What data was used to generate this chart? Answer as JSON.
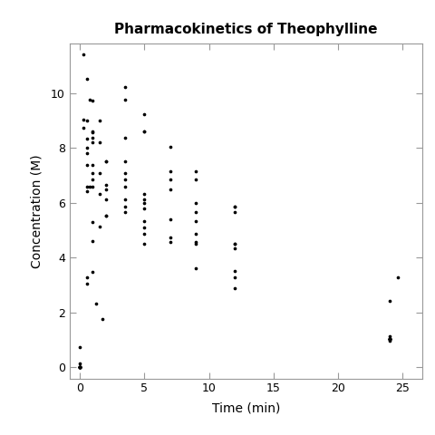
{
  "title": "Pharmacokinetics of Theophylline",
  "xlabel": "Time (min)",
  "ylabel": "Concentration (M)",
  "xlim": [
    -0.8,
    26.5
  ],
  "ylim": [
    -0.4,
    11.8
  ],
  "xticks": [
    0,
    5,
    10,
    15,
    20,
    25
  ],
  "yticks": [
    0,
    2,
    4,
    6,
    8,
    10
  ],
  "background": "#ffffff",
  "dot_color": "#000000",
  "dot_size": 7,
  "x": [
    0.0,
    0.0,
    0.0,
    0.0,
    0.0,
    0.0,
    0.0,
    0.0,
    0.0,
    0.0,
    0.0,
    0.0,
    0.27,
    0.27,
    0.27,
    0.52,
    0.52,
    0.52,
    0.52,
    0.52,
    0.52,
    0.52,
    0.52,
    0.52,
    0.52,
    0.75,
    0.75,
    1.0,
    1.0,
    1.0,
    1.0,
    1.0,
    1.0,
    1.0,
    1.0,
    1.0,
    1.0,
    1.0,
    1.0,
    1.25,
    1.5,
    1.5,
    1.5,
    1.5,
    1.5,
    1.75,
    2.0,
    2.0,
    2.0,
    2.0,
    2.0,
    2.0,
    2.0,
    3.5,
    3.5,
    3.5,
    3.5,
    3.5,
    3.5,
    3.5,
    3.5,
    3.5,
    3.5,
    5.0,
    5.0,
    5.0,
    5.0,
    5.0,
    5.0,
    5.0,
    5.0,
    5.0,
    5.0,
    5.0,
    7.0,
    7.0,
    7.0,
    7.0,
    7.0,
    7.0,
    7.0,
    9.0,
    9.0,
    9.0,
    9.0,
    9.0,
    9.0,
    9.0,
    9.0,
    9.0,
    12.0,
    12.0,
    12.0,
    12.0,
    12.0,
    12.0,
    12.0,
    12.0,
    12.0,
    24.0,
    24.0,
    24.0,
    24.0,
    24.0,
    24.0,
    24.0,
    24.0,
    24.0,
    24.0,
    24.0,
    24.65
  ],
  "y": [
    0.74,
    0.0,
    0.0,
    0.0,
    0.0,
    0.15,
    0.0,
    0.0,
    0.0,
    0.0,
    0.0,
    0.0,
    11.4,
    8.74,
    9.03,
    10.5,
    7.82,
    8.0,
    6.58,
    7.39,
    8.33,
    6.43,
    3.04,
    9.0,
    3.28,
    9.75,
    6.57,
    8.2,
    8.6,
    8.58,
    9.72,
    7.09,
    8.36,
    4.6,
    5.29,
    3.49,
    6.85,
    6.6,
    7.37,
    2.34,
    7.09,
    6.32,
    5.12,
    8.2,
    9.0,
    1.75,
    6.11,
    5.53,
    5.53,
    6.64,
    6.5,
    7.5,
    7.5,
    10.21,
    7.5,
    9.75,
    6.58,
    6.11,
    6.85,
    5.87,
    5.66,
    8.36,
    7.09,
    9.22,
    8.6,
    8.6,
    6.32,
    6.11,
    4.86,
    6.0,
    5.78,
    5.33,
    4.5,
    5.09,
    8.03,
    6.5,
    6.85,
    4.73,
    4.57,
    5.4,
    7.14,
    7.14,
    6.0,
    5.66,
    3.62,
    4.57,
    4.5,
    5.33,
    4.86,
    6.85,
    5.87,
    5.87,
    5.66,
    4.34,
    3.28,
    2.89,
    3.53,
    4.5,
    4.5,
    1.05,
    1.05,
    1.05,
    1.05,
    1.05,
    1.05,
    1.15,
    1.05,
    1.05,
    0.98,
    2.42,
    3.28
  ]
}
